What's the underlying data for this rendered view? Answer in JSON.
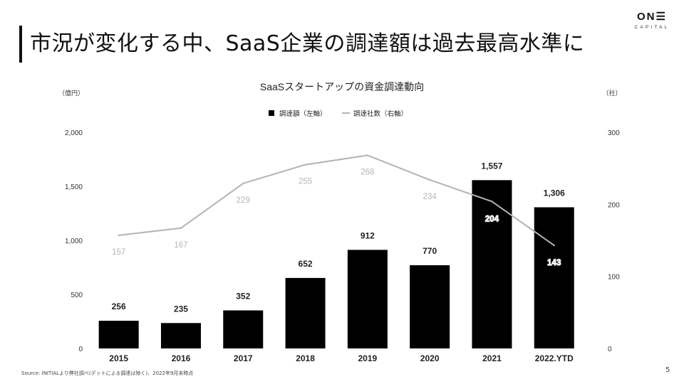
{
  "slide": {
    "title": "市況が変化する中、SaaS企業の調達額は過去最高水準に",
    "logo_main": "ON☰",
    "logo_sub": "CAPITAL",
    "source": "Source: INITIALより弊社調べ(デットによる調達は除く)、2022年9月末時点",
    "page_number": "5"
  },
  "chart_data": {
    "type": "bar",
    "title": "SaaSスタートアップの資金調達動向",
    "categories": [
      "2015",
      "2016",
      "2017",
      "2018",
      "2019",
      "2020",
      "2021",
      "2022.YTD"
    ],
    "y_left_label": "（億円）",
    "y_right_label": "（社）",
    "y_left_range": [
      0,
      2000
    ],
    "y_right_range": [
      0,
      300
    ],
    "y_left_ticks": [
      "0",
      "500",
      "1,000",
      "1,500",
      "2,000"
    ],
    "y_right_ticks": [
      "0",
      "100",
      "200",
      "300"
    ],
    "grid": false,
    "legend_position": "top-center",
    "series": [
      {
        "name": "調達額（左軸）",
        "type": "bar",
        "axis": "left",
        "color": "#000000",
        "values": [
          256,
          235,
          352,
          652,
          912,
          770,
          1557,
          1306
        ],
        "labels": [
          "256",
          "235",
          "352",
          "652",
          "912",
          "770",
          "1,557",
          "1,306"
        ]
      },
      {
        "name": "調達社数（右軸）",
        "type": "line",
        "axis": "right",
        "color": "#b3b3b3",
        "values": [
          157,
          167,
          229,
          255,
          268,
          234,
          204,
          143
        ],
        "labels": [
          "157",
          "167",
          "229",
          "255",
          "268",
          "234",
          "204",
          "143"
        ]
      }
    ]
  }
}
